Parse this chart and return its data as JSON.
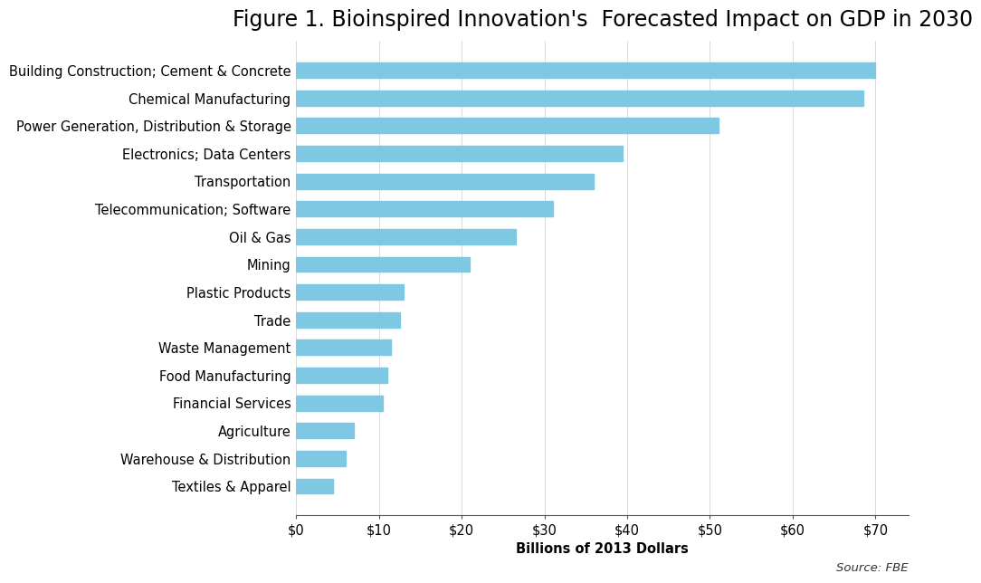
{
  "title": "Figure 1. Bioinspired Innovation's  Forecasted Impact on GDP in 2030",
  "xlabel": "Billions of 2013 Dollars",
  "source_text": "Source: FBE",
  "categories": [
    "Building Construction; Cement & Concrete",
    "Chemical Manufacturing",
    "Power Generation, Distribution & Storage",
    "Electronics; Data Centers",
    "Transportation",
    "Telecommunication; Software",
    "Oil & Gas",
    "Mining",
    "Plastic Products",
    "Trade",
    "Waste Management",
    "Food Manufacturing",
    "Financial Services",
    "Agriculture",
    "Warehouse & Distribution",
    "Textiles & Apparel"
  ],
  "values": [
    70.0,
    68.5,
    51.0,
    39.5,
    36.0,
    31.0,
    26.5,
    21.0,
    13.0,
    12.5,
    11.5,
    11.0,
    10.5,
    7.0,
    6.0,
    4.5
  ],
  "bar_color": "#7EC8E3",
  "xlim": [
    0,
    74
  ],
  "xticks": [
    0,
    10,
    20,
    30,
    40,
    50,
    60,
    70
  ],
  "xtick_labels": [
    "$0",
    "$10",
    "$20",
    "$30",
    "$40",
    "$50",
    "$60",
    "$70"
  ],
  "background_color": "#ffffff",
  "title_fontsize": 17,
  "label_fontsize": 10.5,
  "tick_fontsize": 10.5,
  "source_fontsize": 9.5,
  "bar_height": 0.55
}
